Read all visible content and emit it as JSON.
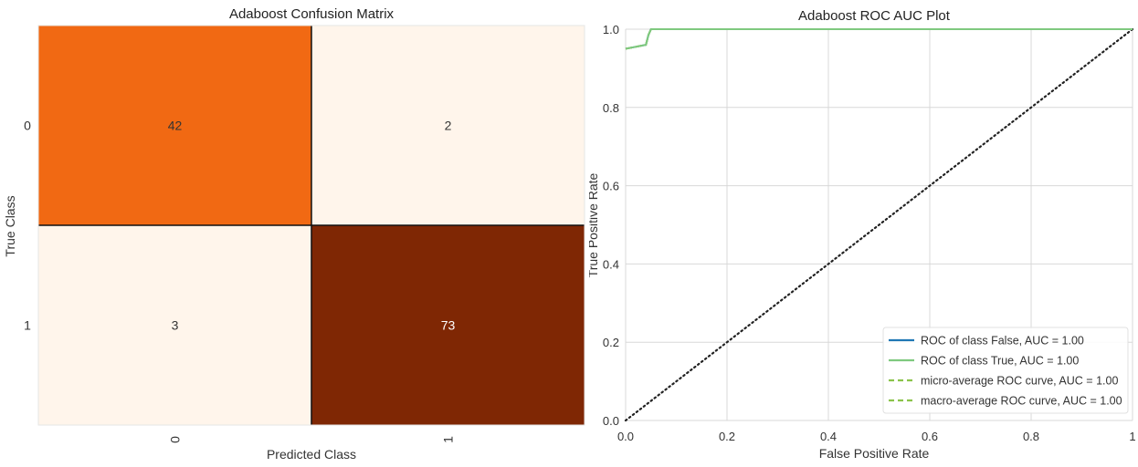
{
  "colors": {
    "cell_low": "#fff5eb",
    "cell_mid": "#f16913",
    "cell_high": "#7f2704",
    "text_dark": "#333333",
    "text_light": "#ffffff",
    "grid": "#d8d8d8",
    "roc_false": "#1f77b4",
    "roc_true": "#7fc97f",
    "micro": "#8bc34a",
    "macro": "#8bc34a",
    "diagonal": "#222222"
  },
  "chart_data": [
    {
      "type": "heatmap",
      "title": "Adaboost Confusion Matrix",
      "xlabel": "Predicted Class",
      "ylabel": "True Class",
      "x_categories": [
        "0",
        "1"
      ],
      "y_categories": [
        "0",
        "1"
      ],
      "values": [
        [
          42,
          2
        ],
        [
          3,
          73
        ]
      ],
      "cell_colors": [
        [
          "cell_mid",
          "cell_low"
        ],
        [
          "cell_low",
          "cell_high"
        ]
      ]
    },
    {
      "type": "line",
      "title": "Adaboost ROC AUC Plot",
      "xlabel": "False Positive Rate",
      "ylabel": "True Positive Rate",
      "xlim": [
        0,
        1
      ],
      "ylim": [
        0,
        1
      ],
      "x_ticks": [
        "0.0",
        "0.2",
        "0.4",
        "0.6",
        "0.8",
        "1"
      ],
      "y_ticks": [
        "0.0",
        "0.2",
        "0.4",
        "0.6",
        "0.8",
        "1.0"
      ],
      "grid": true,
      "legend_position": "lower-right",
      "series": [
        {
          "name": "ROC of class False, AUC = 1.00",
          "color_key": "roc_false",
          "dash": "solid",
          "points": [
            [
              0,
              0.95
            ],
            [
              0.02,
              0.955
            ],
            [
              0.04,
              0.96
            ],
            [
              0.045,
              0.985
            ],
            [
              0.05,
              1.0
            ],
            [
              1,
              1.0
            ]
          ]
        },
        {
          "name": "ROC of class True, AUC = 1.00",
          "color_key": "roc_true",
          "dash": "solid",
          "points": [
            [
              0,
              0.95
            ],
            [
              0.02,
              0.955
            ],
            [
              0.04,
              0.96
            ],
            [
              0.045,
              0.985
            ],
            [
              0.05,
              1.0
            ],
            [
              1,
              1.0
            ]
          ]
        },
        {
          "name": "micro-average ROC curve, AUC = 1.00",
          "color_key": "micro",
          "dash": "dashed",
          "points": [
            [
              0,
              0.95
            ],
            [
              0.02,
              0.955
            ],
            [
              0.04,
              0.96
            ],
            [
              0.045,
              0.985
            ],
            [
              0.05,
              1.0
            ],
            [
              1,
              1.0
            ]
          ]
        },
        {
          "name": "macro-average ROC curve, AUC = 1.00",
          "color_key": "macro",
          "dash": "dashed",
          "points": [
            [
              0,
              0.95
            ],
            [
              0.02,
              0.955
            ],
            [
              0.04,
              0.96
            ],
            [
              0.045,
              0.985
            ],
            [
              0.05,
              1.0
            ],
            [
              1,
              1.0
            ]
          ]
        }
      ],
      "reference_line": {
        "points": [
          [
            0,
            0
          ],
          [
            1,
            1
          ]
        ],
        "style": "dotted",
        "color_key": "diagonal"
      }
    }
  ]
}
